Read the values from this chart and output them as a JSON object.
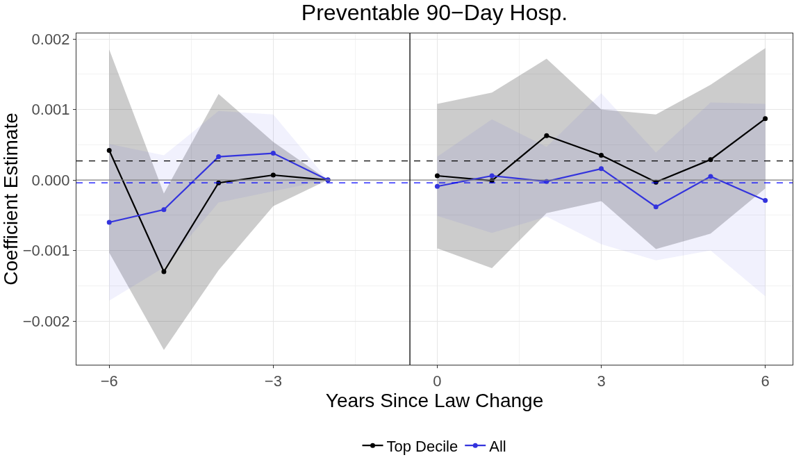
{
  "chart_data": {
    "type": "line",
    "title": "Preventable 90−Day Hosp.",
    "xlabel": "Years Since Law Change",
    "ylabel": "Coefficient Estimate",
    "x": [
      -6,
      -5,
      -4,
      -3,
      -2,
      -1,
      0,
      1,
      2,
      3,
      4,
      5,
      6
    ],
    "series": [
      {
        "name": "Top Decile",
        "color": "#000000",
        "values": [
          0.00042,
          -0.0013,
          -4e-05,
          7e-05,
          0,
          null,
          6e-05,
          -1e-05,
          0.00063,
          0.00035,
          -3e-05,
          0.00029,
          0.00087
        ],
        "lower": [
          -0.00103,
          -0.00241,
          -0.00128,
          -0.00037,
          0,
          null,
          -0.00097,
          -0.00125,
          -0.00047,
          -0.0003,
          -0.00098,
          -0.00076,
          -0.00012
        ],
        "upper": [
          0.00185,
          -0.00019,
          0.00122,
          0.00054,
          0,
          null,
          0.00108,
          0.00124,
          0.00172,
          0.001,
          0.00093,
          0.00135,
          0.00187
        ]
      },
      {
        "name": "All",
        "color": "#3333dd",
        "values": [
          -0.0006,
          -0.00042,
          0.00033,
          0.00038,
          0,
          null,
          -9e-05,
          6e-05,
          -2e-05,
          0.00016,
          -0.00038,
          5e-05,
          -0.00029
        ],
        "lower": [
          -0.00171,
          -0.00124,
          -0.00032,
          -0.00016,
          0,
          null,
          -0.00051,
          -0.00075,
          -0.00052,
          -0.00091,
          -0.00114,
          -0.001,
          -0.00165
        ],
        "upper": [
          0.00051,
          0.00035,
          0.00098,
          0.00093,
          0,
          null,
          0.00033,
          0.00086,
          0.00047,
          0.00123,
          0.00039,
          0.0011,
          0.00108
        ]
      }
    ],
    "xlim": [
      -6.6,
      6.5
    ],
    "xticks": [
      {
        "value": -6,
        "label": "−6"
      },
      {
        "value": -3,
        "label": "−3"
      },
      0,
      3,
      6
    ],
    "ylim": [
      -0.00262,
      0.00208
    ],
    "yticks": [
      {
        "value": -0.002,
        "label": "−0.002"
      },
      {
        "value": -0.001,
        "label": "−0.001"
      },
      {
        "value": 0,
        "label": "0.000"
      },
      {
        "value": 0.001,
        "label": "0.001"
      },
      {
        "value": 0.002,
        "label": "0.002"
      }
    ],
    "ref_lines": [
      {
        "axis": "y",
        "value": 0,
        "color": "#808080",
        "line_style": "solid"
      },
      {
        "axis": "x",
        "value": -0.5,
        "color": "#000000",
        "line_style": "solid"
      },
      {
        "axis": "y",
        "value": 0.00027,
        "color": "#000000",
        "line_style": "dashed"
      },
      {
        "axis": "y",
        "value": -4e-05,
        "color": "#0000ff",
        "line_style": "dashed"
      }
    ],
    "grid": true,
    "legend": "bottom",
    "marker": "circle",
    "line_style": "solid"
  }
}
